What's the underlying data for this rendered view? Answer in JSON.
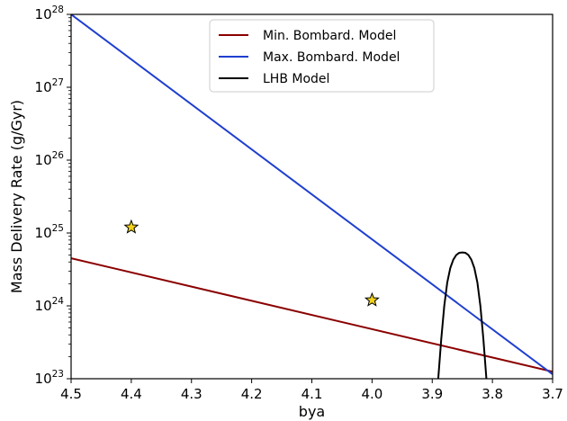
{
  "chart_data": {
    "type": "line",
    "xlabel": "bya",
    "ylabel": "Mass Delivery Rate (g/Gyr)",
    "xlim": [
      4.5,
      3.7
    ],
    "x_inverted": true,
    "ylim": [
      1e+23,
      1e+28
    ],
    "yscale": "log",
    "x_ticks": [
      4.5,
      4.4,
      4.3,
      4.2,
      4.1,
      4.0,
      3.9,
      3.8,
      3.7
    ],
    "x_tick_labels": [
      "4.5",
      "4.4",
      "4.3",
      "4.2",
      "4.1",
      "4.0",
      "3.9",
      "3.8",
      "3.7"
    ],
    "y_ticks": [
      {
        "value": 1e+23,
        "base": "10",
        "exp": "23"
      },
      {
        "value": 1e+24,
        "base": "10",
        "exp": "24"
      },
      {
        "value": 1e+25,
        "base": "10",
        "exp": "25"
      },
      {
        "value": 1e+26,
        "base": "10",
        "exp": "26"
      },
      {
        "value": 1e+27,
        "base": "10",
        "exp": "27"
      },
      {
        "value": 1e+28,
        "base": "10",
        "exp": "28"
      }
    ],
    "grid": false,
    "legend_position": "top-center",
    "series": [
      {
        "name": "Min. Bombard. Model",
        "color": "#8b0000",
        "x": [
          4.5,
          3.7
        ],
        "y": [
          4.5e+24,
          1.25e+23
        ]
      },
      {
        "name": "Max. Bombard. Model",
        "color": "#1f3fcf",
        "x": [
          4.5,
          3.7
        ],
        "y": [
          1e+28,
          1.15e+23
        ]
      },
      {
        "name": "LHB Model",
        "color": "#000000",
        "x": [
          3.89,
          3.885,
          3.88,
          3.875,
          3.87,
          3.865,
          3.86,
          3.855,
          3.85,
          3.845,
          3.84,
          3.835,
          3.83,
          3.825,
          3.82,
          3.815,
          3.81
        ],
        "y": [
          1e+23,
          3.5e+23,
          1e+24,
          2.1e+24,
          3.3e+24,
          4.3e+24,
          5e+24,
          5.35e+24,
          5.4e+24,
          5.35e+24,
          5e+24,
          4.3e+24,
          3.3e+24,
          2.1e+24,
          1e+24,
          3.5e+23,
          1e+23
        ]
      }
    ],
    "points": [
      {
        "x": 4.4,
        "y": 1.2e+25,
        "marker": "star",
        "color": "#f2d21b"
      },
      {
        "x": 4.0,
        "y": 1.2e+24,
        "marker": "star",
        "color": "#f2d21b"
      }
    ]
  }
}
